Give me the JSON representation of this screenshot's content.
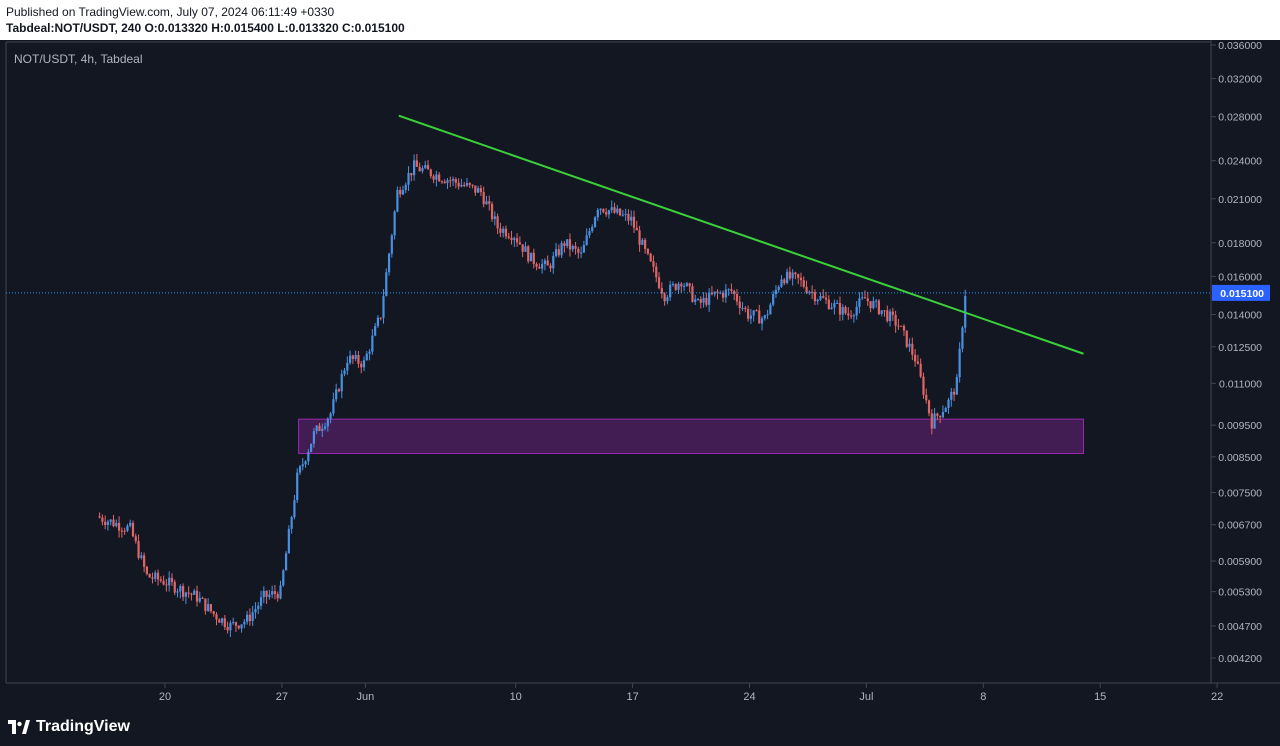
{
  "header": {
    "published": "Published on TradingView.com, July 07, 2024 06:11:49 +0330",
    "ohlc": "Tabdeal:NOT/USDT, 240  O:0.013320  H:0.015400  L:0.013320  C:0.015100"
  },
  "symbol_label": "NOT/USDT, 4h, Tabdeal",
  "footer": {
    "brand": "TradingView"
  },
  "colors": {
    "up": "#4a90e2",
    "down": "#e06666",
    "trendline": "#3ad13a",
    "zone_fill": "rgba(156,39,176,0.35)",
    "zone_stroke": "#9c27b0",
    "price_line": "#2196f3",
    "last_price_bg": "#2962ff"
  },
  "chart_data": {
    "type": "candlestick",
    "price_axis": {
      "scale": "log",
      "ticks": [
        "0.036000",
        "0.032000",
        "0.028000",
        "0.024000",
        "0.021000",
        "0.018000",
        "0.016000",
        "0.014000",
        "0.012500",
        "0.011000",
        "0.009500",
        "0.008500",
        "0.007500",
        "0.006700",
        "0.005900",
        "0.005300",
        "0.004700",
        "0.004200"
      ],
      "last_price": "0.015100"
    },
    "time_axis": {
      "ticks": [
        {
          "label": "20",
          "date": "2024-05-20"
        },
        {
          "label": "27",
          "date": "2024-05-27"
        },
        {
          "label": "Jun",
          "date": "2024-06-01"
        },
        {
          "label": "10",
          "date": "2024-06-10"
        },
        {
          "label": "17",
          "date": "2024-06-17"
        },
        {
          "label": "24",
          "date": "2024-06-24"
        },
        {
          "label": "Jul",
          "date": "2024-07-01"
        },
        {
          "label": "8",
          "date": "2024-07-08"
        },
        {
          "label": "15",
          "date": "2024-07-15"
        },
        {
          "label": "22",
          "date": "2024-07-22"
        }
      ]
    },
    "anchors": [
      {
        "date": "2024-05-16",
        "price": 0.0069
      },
      {
        "date": "2024-05-18",
        "price": 0.0066
      },
      {
        "date": "2024-05-19",
        "price": 0.0056
      },
      {
        "date": "2024-05-20",
        "price": 0.0055
      },
      {
        "date": "2024-05-22",
        "price": 0.0052
      },
      {
        "date": "2024-05-23",
        "price": 0.0049
      },
      {
        "date": "2024-05-24",
        "price": 0.0047
      },
      {
        "date": "2024-05-25",
        "price": 0.0048
      },
      {
        "date": "2024-05-26",
        "price": 0.0052
      },
      {
        "date": "2024-05-27",
        "price": 0.0053
      },
      {
        "date": "2024-05-28",
        "price": 0.0079
      },
      {
        "date": "2024-05-29",
        "price": 0.0092
      },
      {
        "date": "2024-05-30",
        "price": 0.0099
      },
      {
        "date": "2024-05-31",
        "price": 0.012
      },
      {
        "date": "2024-06-01",
        "price": 0.0118
      },
      {
        "date": "2024-06-02",
        "price": 0.014
      },
      {
        "date": "2024-06-03",
        "price": 0.0215
      },
      {
        "date": "2024-06-04",
        "price": 0.0235
      },
      {
        "date": "2024-06-05",
        "price": 0.023
      },
      {
        "date": "2024-06-06",
        "price": 0.0225
      },
      {
        "date": "2024-06-07",
        "price": 0.022
      },
      {
        "date": "2024-06-08",
        "price": 0.0215
      },
      {
        "date": "2024-06-09",
        "price": 0.019
      },
      {
        "date": "2024-06-10",
        "price": 0.0185
      },
      {
        "date": "2024-06-11",
        "price": 0.017
      },
      {
        "date": "2024-06-12",
        "price": 0.0165
      },
      {
        "date": "2024-06-13",
        "price": 0.018
      },
      {
        "date": "2024-06-14",
        "price": 0.0172
      },
      {
        "date": "2024-06-15",
        "price": 0.0205
      },
      {
        "date": "2024-06-16",
        "price": 0.02
      },
      {
        "date": "2024-06-17",
        "price": 0.0195
      },
      {
        "date": "2024-06-18",
        "price": 0.017
      },
      {
        "date": "2024-06-19",
        "price": 0.015
      },
      {
        "date": "2024-06-20",
        "price": 0.0158
      },
      {
        "date": "2024-06-21",
        "price": 0.0145
      },
      {
        "date": "2024-06-22",
        "price": 0.015
      },
      {
        "date": "2024-06-23",
        "price": 0.0152
      },
      {
        "date": "2024-06-24",
        "price": 0.014
      },
      {
        "date": "2024-06-25",
        "price": 0.0138
      },
      {
        "date": "2024-06-26",
        "price": 0.016
      },
      {
        "date": "2024-06-27",
        "price": 0.0158
      },
      {
        "date": "2024-06-28",
        "price": 0.015
      },
      {
        "date": "2024-06-29",
        "price": 0.0145
      },
      {
        "date": "2024-06-30",
        "price": 0.014
      },
      {
        "date": "2024-07-01",
        "price": 0.0148
      },
      {
        "date": "2024-07-02",
        "price": 0.0142
      },
      {
        "date": "2024-07-03",
        "price": 0.0135
      },
      {
        "date": "2024-07-04",
        "price": 0.012
      },
      {
        "date": "2024-07-05",
        "price": 0.0096
      },
      {
        "date": "2024-07-06",
        "price": 0.0103
      },
      {
        "date": "2024-07-06T12:00",
        "price": 0.011
      },
      {
        "date": "2024-07-07",
        "price": 0.0151
      }
    ],
    "trendline": {
      "start": {
        "date": "2024-06-03",
        "price": 0.0281
      },
      "end": {
        "date": "2024-07-14",
        "price": 0.0122
      }
    },
    "demand_zone": {
      "start": "2024-05-28",
      "end": "2024-07-14",
      "top": 0.0097,
      "bottom": 0.0086
    }
  }
}
